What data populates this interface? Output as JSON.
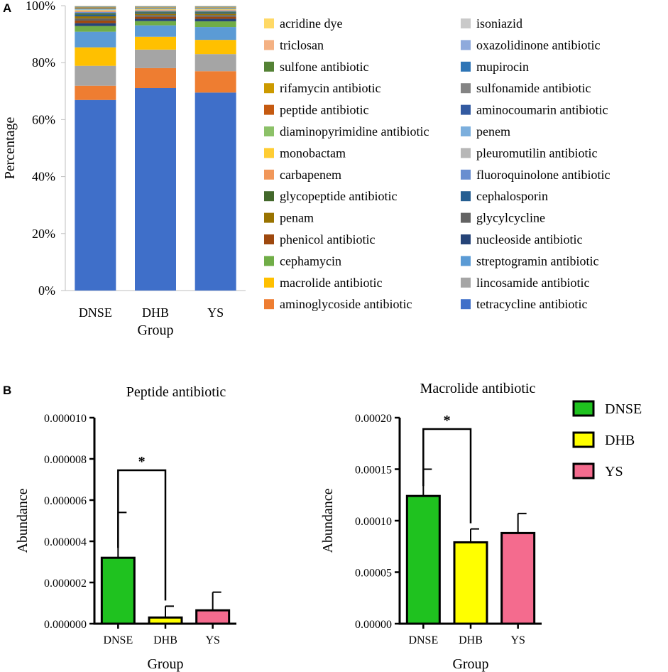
{
  "panels": {
    "a_label": "A",
    "b_label": "B"
  },
  "chart_data": [
    {
      "type": "bar",
      "stacked": true,
      "percent": true,
      "categories": [
        "DNSE",
        "DHB",
        "YS"
      ],
      "xlabel": "Group",
      "ylabel": "Percentage",
      "ylim": [
        0,
        100
      ],
      "yticks": [
        "0%",
        "20%",
        "40%",
        "60%",
        "80%",
        "100%"
      ],
      "series": [
        {
          "name": "tetracycline antibiotic",
          "color": "#3F6FC9",
          "values": [
            67,
            71,
            69.5
          ]
        },
        {
          "name": "aminoglycoside antibiotic",
          "color": "#EE7D31",
          "values": [
            5,
            7,
            7.5
          ]
        },
        {
          "name": "lincosamide antibiotic",
          "color": "#A5A5A5",
          "values": [
            7,
            6.5,
            6
          ]
        },
        {
          "name": "macrolide antibiotic",
          "color": "#FFC000",
          "values": [
            6.5,
            4.5,
            5
          ]
        },
        {
          "name": "streptogramin antibiotic",
          "color": "#5B9BD5",
          "values": [
            5.5,
            4,
            4.5
          ]
        },
        {
          "name": "cephamycin",
          "color": "#70AD47",
          "values": [
            2,
            1.5,
            2
          ]
        },
        {
          "name": "nucleoside antibiotic",
          "color": "#264478",
          "values": [
            1,
            0.8,
            0.9
          ]
        },
        {
          "name": "phenicol antibiotic",
          "color": "#9E480E",
          "values": [
            0.9,
            0.7,
            0.7
          ]
        },
        {
          "name": "glycylcycline",
          "color": "#636363",
          "values": [
            0.8,
            0.6,
            0.6
          ]
        },
        {
          "name": "penam",
          "color": "#997300",
          "values": [
            0.7,
            0.5,
            0.5
          ]
        },
        {
          "name": "cephalosporin",
          "color": "#255E91",
          "values": [
            0.6,
            0.4,
            0.4
          ]
        },
        {
          "name": "glycopeptide antibiotic",
          "color": "#43682B",
          "values": [
            0.5,
            0.3,
            0.3
          ]
        },
        {
          "name": "fluoroquinolone antibiotic",
          "color": "#698ED0",
          "values": [
            0.4,
            0.3,
            0.3
          ]
        },
        {
          "name": "carbapenem",
          "color": "#F1975A",
          "values": [
            0.3,
            0.2,
            0.2
          ]
        },
        {
          "name": "pleuromutilin antibiotic",
          "color": "#B7B7B7",
          "values": [
            0.3,
            0.2,
            0.2
          ]
        },
        {
          "name": "monobactam",
          "color": "#FFCD33",
          "values": [
            0.2,
            0.15,
            0.15
          ]
        },
        {
          "name": "penem",
          "color": "#7CAFDD",
          "values": [
            0.2,
            0.15,
            0.15
          ]
        },
        {
          "name": "diaminopyrimidine antibiotic",
          "color": "#8CC168",
          "values": [
            0.2,
            0.15,
            0.15
          ]
        },
        {
          "name": "aminocoumarin antibiotic",
          "color": "#335AA1",
          "values": [
            0.15,
            0.15,
            0.15
          ]
        },
        {
          "name": "peptide antibiotic",
          "color": "#C55A11",
          "values": [
            0.15,
            0.1,
            0.1
          ]
        },
        {
          "name": "sulfonamide antibiotic",
          "color": "#848484",
          "values": [
            0.15,
            0.1,
            0.1
          ]
        },
        {
          "name": "rifamycin antibiotic",
          "color": "#CC9A00",
          "values": [
            0.1,
            0.1,
            0.1
          ]
        },
        {
          "name": "mupirocin",
          "color": "#2E75B6",
          "values": [
            0.1,
            0.1,
            0.1
          ]
        },
        {
          "name": "sulfone antibiotic",
          "color": "#548235",
          "values": [
            0.1,
            0.1,
            0.1
          ]
        },
        {
          "name": "oxazolidinone antibiotic",
          "color": "#8FAADC",
          "values": [
            0.1,
            0.1,
            0.1
          ]
        },
        {
          "name": "triclosan",
          "color": "#F4B183",
          "values": [
            0.1,
            0.1,
            0.1
          ]
        },
        {
          "name": "isoniazid",
          "color": "#C9C9C9",
          "values": [
            0.05,
            0.05,
            0.05
          ]
        },
        {
          "name": "acridine dye",
          "color": "#FFD966",
          "values": [
            0.05,
            0.05,
            0.05
          ]
        }
      ],
      "legend_left": [
        "acridine dye",
        "triclosan",
        "sulfone antibiotic",
        "rifamycin antibiotic",
        "peptide antibiotic",
        "diaminopyrimidine antibiotic",
        "monobactam",
        "carbapenem",
        "glycopeptide antibiotic",
        "penam",
        "phenicol antibiotic",
        "cephamycin",
        "macrolide antibiotic",
        "aminoglycoside antibiotic"
      ],
      "legend_right": [
        "isoniazid",
        "oxazolidinone antibiotic",
        "mupirocin",
        "sulfonamide antibiotic",
        "aminocoumarin antibiotic",
        "penem",
        "pleuromutilin antibiotic",
        "fluoroquinolone antibiotic",
        "cephalosporin",
        "glycylcycline",
        "nucleoside antibiotic",
        "streptogramin antibiotic",
        "lincosamide antibiotic",
        "tetracycline antibiotic"
      ]
    },
    {
      "type": "bar",
      "title": "Peptide antibiotic",
      "categories": [
        "DNSE",
        "DHB",
        "YS"
      ],
      "values": [
        3.2e-06,
        3e-07,
        6.5e-07
      ],
      "errors": [
        2.2e-06,
        5.5e-07,
        8.8e-07
      ],
      "colors": [
        "#1FC21F",
        "#FFFF00",
        "#F46B8E"
      ],
      "xlabel": "Group",
      "ylabel": "Abundance",
      "ylim": [
        0,
        1e-05
      ],
      "yticks": [
        "0.000000",
        "0.000002",
        "0.000004",
        "0.000006",
        "0.000008",
        "0.000010"
      ],
      "significance": {
        "from": "DNSE",
        "to": "DHB",
        "label": "*"
      }
    },
    {
      "type": "bar",
      "title": "Macrolide antibiotic",
      "categories": [
        "DNSE",
        "DHB",
        "YS"
      ],
      "values": [
        0.000124,
        7.9e-05,
        8.8e-05
      ],
      "errors": [
        2.6e-05,
        1.3e-05,
        1.9e-05
      ],
      "colors": [
        "#1FC21F",
        "#FFFF00",
        "#F46B8E"
      ],
      "xlabel": "Group",
      "ylabel": "Abundance",
      "ylim": [
        0,
        0.0002
      ],
      "yticks": [
        "0.00000",
        "0.00005",
        "0.00010",
        "0.00015",
        "0.00020"
      ],
      "significance": {
        "from": "DNSE",
        "to": "DHB",
        "label": "*"
      }
    }
  ],
  "legend_b": [
    {
      "label": "DNSE",
      "color": "#1FC21F"
    },
    {
      "label": "DHB",
      "color": "#FFFF00"
    },
    {
      "label": "YS",
      "color": "#F46B8E"
    }
  ]
}
